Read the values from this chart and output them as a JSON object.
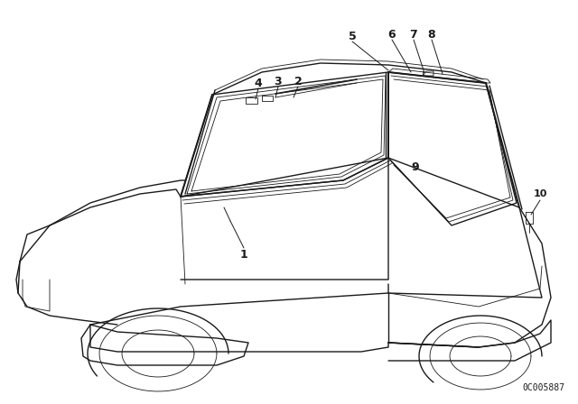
{
  "background_color": "#ffffff",
  "line_color": "#1a1a1a",
  "diagram_code": "0C005887",
  "lw_main": 1.0,
  "lw_thin": 0.6,
  "lw_thick": 1.4,
  "label_fontsize": 9,
  "code_fontsize": 7
}
